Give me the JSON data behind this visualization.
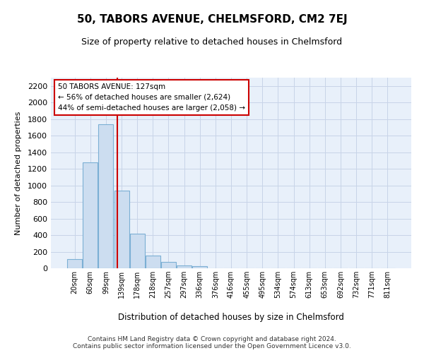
{
  "title": "50, TABORS AVENUE, CHELMSFORD, CM2 7EJ",
  "subtitle": "Size of property relative to detached houses in Chelmsford",
  "xlabel": "Distribution of detached houses by size in Chelmsford",
  "ylabel": "Number of detached properties",
  "bar_color": "#ccddf0",
  "bar_edge_color": "#7bafd4",
  "grid_color": "#c8d4e8",
  "background_color": "#e8f0fa",
  "bins": [
    "20sqm",
    "60sqm",
    "99sqm",
    "139sqm",
    "178sqm",
    "218sqm",
    "257sqm",
    "297sqm",
    "336sqm",
    "376sqm",
    "416sqm",
    "455sqm",
    "495sqm",
    "534sqm",
    "574sqm",
    "613sqm",
    "653sqm",
    "692sqm",
    "732sqm",
    "771sqm",
    "811sqm"
  ],
  "values": [
    110,
    1275,
    1740,
    940,
    415,
    150,
    75,
    35,
    25,
    0,
    0,
    0,
    0,
    0,
    0,
    0,
    0,
    0,
    0,
    0,
    0
  ],
  "vline_color": "#cc0000",
  "annotation_text": "50 TABORS AVENUE: 127sqm\n← 56% of detached houses are smaller (2,624)\n44% of semi-detached houses are larger (2,058) →",
  "annotation_box_color": "#cc0000",
  "ylim": [
    0,
    2300
  ],
  "yticks": [
    0,
    200,
    400,
    600,
    800,
    1000,
    1200,
    1400,
    1600,
    1800,
    2000,
    2200
  ],
  "footer_line1": "Contains HM Land Registry data © Crown copyright and database right 2024.",
  "footer_line2": "Contains public sector information licensed under the Open Government Licence v3.0.",
  "vline_index": 2.72
}
